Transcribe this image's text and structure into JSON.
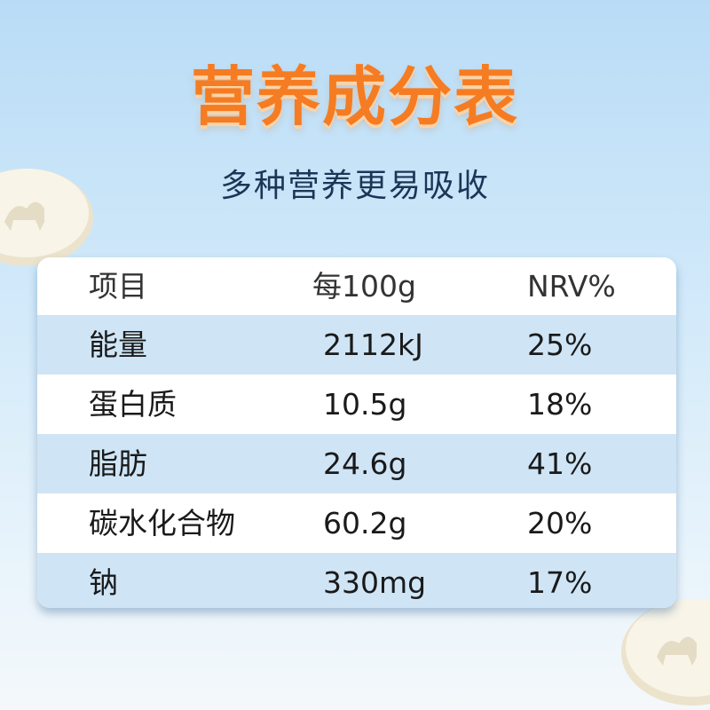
{
  "header": {
    "title": "营养成分表",
    "subtitle": "多种营养更易吸收"
  },
  "table": {
    "columns": [
      "项目",
      "每100g",
      "NRV%"
    ],
    "rows": [
      [
        "能量",
        "2112kJ",
        "25%"
      ],
      [
        "蛋白质",
        "10.5g",
        "18%"
      ],
      [
        "脂肪",
        "24.6g",
        "41%"
      ],
      [
        "碳水化合物",
        "60.2g",
        "20%"
      ],
      [
        "钠",
        "330mg",
        "17%"
      ]
    ]
  }
}
